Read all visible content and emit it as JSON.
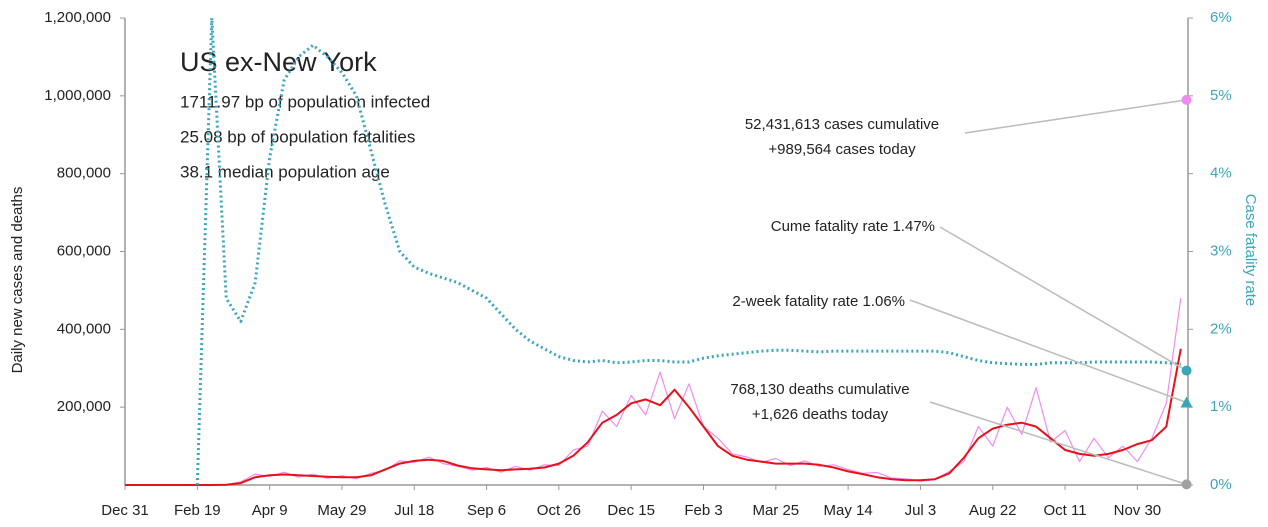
{
  "chart_data": {
    "type": "line",
    "title": "US ex-New York",
    "notes": [
      "1711.97 bp of population infected",
      "25.08 bp of population fatalities",
      "38.1 median population age"
    ],
    "ylabel": "Daily new cases and deaths",
    "y2label": "Case fatality rate",
    "x": [
      0,
      10,
      20,
      30,
      40,
      50,
      60,
      70,
      80,
      90,
      100,
      110,
      120,
      130,
      140,
      150,
      160,
      170,
      180,
      190,
      200,
      210,
      220,
      230,
      240,
      250,
      260,
      270,
      280,
      290,
      300,
      310,
      320,
      330,
      340,
      350,
      360,
      370,
      380,
      390,
      400,
      410,
      420,
      430,
      440,
      450,
      460,
      470,
      480,
      490,
      500,
      510,
      520,
      530,
      540,
      550,
      560,
      570,
      580,
      590,
      600,
      610,
      620,
      630,
      640,
      650,
      660,
      670,
      680,
      690,
      700,
      710,
      720,
      730
    ],
    "xlim": [
      0,
      735
    ],
    "xticks": [
      {
        "value": 0,
        "label": "Dec 31"
      },
      {
        "value": 50,
        "label": "Feb 19"
      },
      {
        "value": 100,
        "label": "Apr 9"
      },
      {
        "value": 150,
        "label": "May 29"
      },
      {
        "value": 200,
        "label": "Jul 18"
      },
      {
        "value": 250,
        "label": "Sep 6"
      },
      {
        "value": 300,
        "label": "Oct 26"
      },
      {
        "value": 350,
        "label": "Dec 15"
      },
      {
        "value": 400,
        "label": "Feb 3"
      },
      {
        "value": 450,
        "label": "Mar 25"
      },
      {
        "value": 500,
        "label": "May 14"
      },
      {
        "value": 550,
        "label": "Jul 3"
      },
      {
        "value": 600,
        "label": "Aug 22"
      },
      {
        "value": 650,
        "label": "Oct 11"
      },
      {
        "value": 700,
        "label": "Nov 30"
      }
    ],
    "ylim": [
      0,
      1200000
    ],
    "yticks": [
      {
        "value": 200000,
        "label": "200,000"
      },
      {
        "value": 400000,
        "label": "400,000"
      },
      {
        "value": 600000,
        "label": "600,000"
      },
      {
        "value": 800000,
        "label": "800,000"
      },
      {
        "value": 1000000,
        "label": "1,000,000"
      },
      {
        "value": 1200000,
        "label": "1,200,000"
      }
    ],
    "y2lim": [
      0,
      6
    ],
    "y2ticks": [
      {
        "value": 0,
        "label": "0%"
      },
      {
        "value": 1,
        "label": "1%"
      },
      {
        "value": 2,
        "label": "2%"
      },
      {
        "value": 3,
        "label": "3%"
      },
      {
        "value": 4,
        "label": "4%"
      },
      {
        "value": 5,
        "label": "5%"
      },
      {
        "value": 6,
        "label": "6%"
      }
    ],
    "series": [
      {
        "color": "#f08cf0",
        "width": 1.2,
        "dash": "solid",
        "values": [
          0,
          0,
          0,
          0,
          0,
          0,
          0,
          800,
          8000,
          28000,
          22000,
          33000,
          20000,
          28000,
          17000,
          24000,
          16000,
          30000,
          38000,
          62000,
          58000,
          72000,
          55000,
          48000,
          38000,
          45000,
          33000,
          48000,
          38000,
          52000,
          50000,
          90000,
          100000,
          190000,
          150000,
          230000,
          180000,
          290000,
          170000,
          260000,
          150000,
          120000,
          80000,
          72000,
          58000,
          68000,
          50000,
          62000,
          48000,
          52000,
          40000,
          30000,
          32000,
          18000,
          16000,
          10000,
          14000,
          35000,
          60000,
          150000,
          100000,
          200000,
          130000,
          250000,
          110000,
          140000,
          60000,
          120000,
          70000,
          100000,
          60000,
          120000,
          210000,
          480000
        ]
      },
      {
        "color": "#e8101a",
        "width": 2,
        "dash": "solid",
        "values": [
          0,
          0,
          0,
          0,
          0,
          0,
          0,
          500,
          5000,
          20000,
          25000,
          27000,
          25000,
          23000,
          21000,
          20000,
          20000,
          25000,
          40000,
          55000,
          62000,
          65000,
          62000,
          50000,
          43000,
          40000,
          38000,
          40000,
          42000,
          45000,
          55000,
          75000,
          110000,
          160000,
          180000,
          210000,
          220000,
          205000,
          245000,
          200000,
          150000,
          100000,
          75000,
          65000,
          60000,
          55000,
          55000,
          55000,
          52000,
          45000,
          35000,
          28000,
          20000,
          15000,
          12000,
          12000,
          15000,
          30000,
          70000,
          120000,
          145000,
          155000,
          160000,
          150000,
          120000,
          90000,
          80000,
          75000,
          80000,
          90000,
          105000,
          115000,
          150000,
          350000
        ]
      },
      {
        "color": "#3aa6b9",
        "width": 3,
        "dash": "dotted",
        "axis": "y2",
        "values": [
          null,
          null,
          null,
          null,
          null,
          0,
          6,
          2.4,
          2.1,
          2.6,
          4.2,
          5.2,
          5.5,
          5.65,
          5.5,
          5.3,
          5.0,
          4.3,
          3.6,
          3.0,
          2.8,
          2.72,
          2.66,
          2.6,
          2.5,
          2.4,
          2.2,
          2.0,
          1.85,
          1.75,
          1.65,
          1.6,
          1.58,
          1.6,
          1.57,
          1.58,
          1.6,
          1.6,
          1.58,
          1.58,
          1.63,
          1.66,
          1.68,
          1.7,
          1.72,
          1.73,
          1.73,
          1.72,
          1.71,
          1.72,
          1.72,
          1.72,
          1.72,
          1.72,
          1.72,
          1.72,
          1.72,
          1.7,
          1.65,
          1.6,
          1.57,
          1.56,
          1.55,
          1.55,
          1.57,
          1.57,
          1.57,
          1.58,
          1.58,
          1.58,
          1.58,
          1.58,
          1.57,
          1.55
        ]
      }
    ],
    "markers": [
      {
        "x": 734,
        "value": 989564,
        "color": "#f08cf0",
        "shape": "circle"
      },
      {
        "x": 734,
        "value": 1.47,
        "axis": "y2",
        "color": "#3aa6b9",
        "shape": "circle"
      },
      {
        "x": 734,
        "value": 1.06,
        "axis": "y2",
        "color": "#3aa6b9",
        "shape": "triangle"
      },
      {
        "x": 734,
        "value": 1626,
        "color": "#a0a0a0",
        "shape": "circle"
      }
    ],
    "annotations": [
      {
        "lines": [
          "52,431,613 cases cumulative",
          "+989,564 cases today"
        ]
      },
      {
        "lines": [
          "Cume fatality rate 1.47%"
        ]
      },
      {
        "lines": [
          "2-week fatality rate 1.06%"
        ]
      },
      {
        "lines": [
          "768,130 deaths cumulative",
          "+1,626 deaths today"
        ]
      }
    ]
  }
}
